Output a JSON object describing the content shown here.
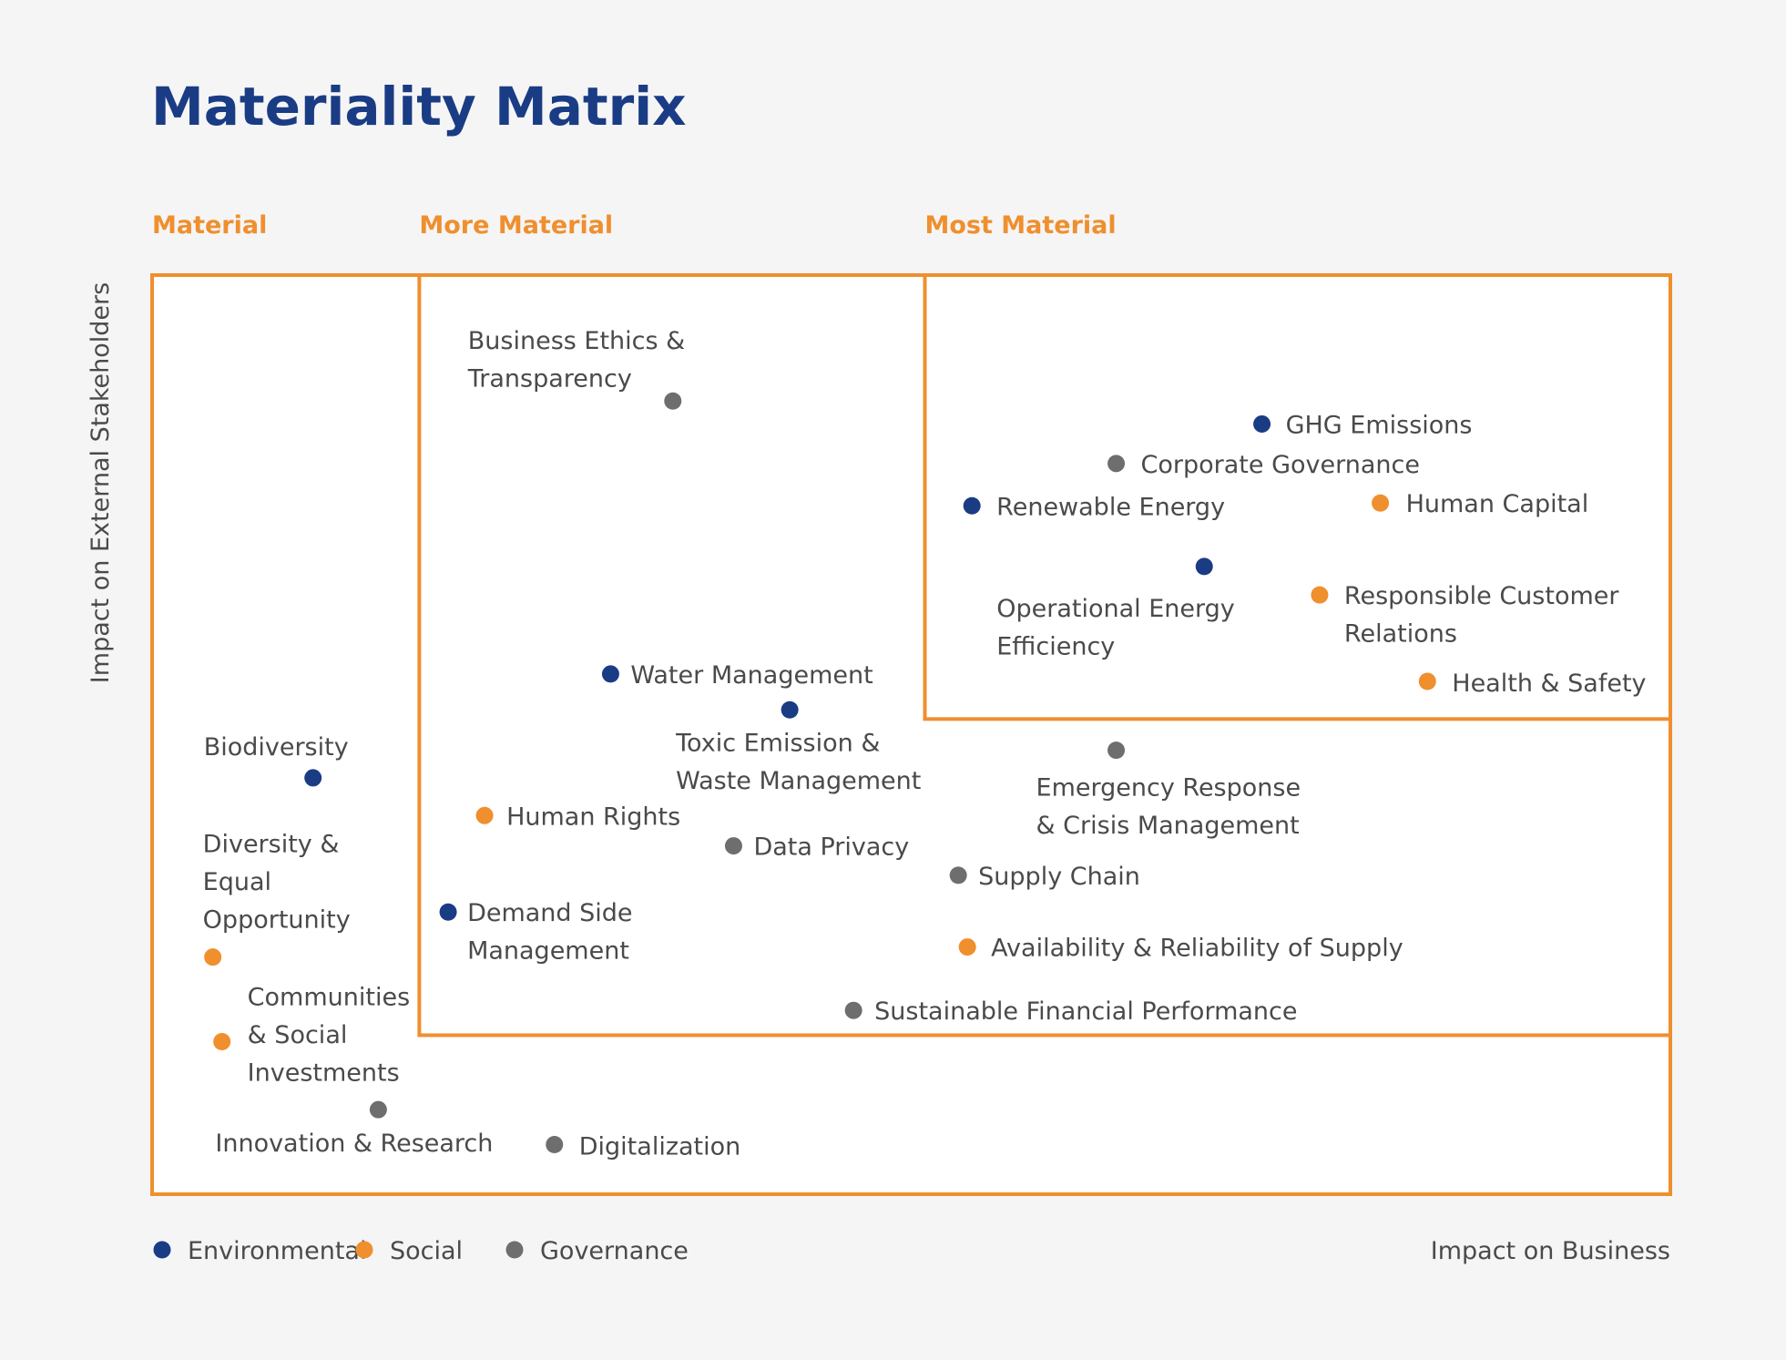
{
  "title": "Materiality Matrix",
  "colors": {
    "background": "#f5f5f5",
    "title": "#1a3c85",
    "frame": "#ef8f2e",
    "zone_label": "#ef8f2e",
    "text": "#4a4a4a",
    "environmental": "#1a3c85",
    "social": "#ef8f2e",
    "governance": "#6e6e6e"
  },
  "chart_data": {
    "type": "scatter",
    "title": "Materiality Matrix",
    "xlabel": "Impact on Business",
    "ylabel": "Impact on External Stakeholders",
    "xlim": [
      0,
      100
    ],
    "ylim": [
      0,
      100
    ],
    "grid": false,
    "legend_position": "bottom-left",
    "zones": [
      {
        "name": "Material",
        "x_from": 0,
        "x_to": 100,
        "y_from": 0,
        "y_to": 100
      },
      {
        "name": "More Material",
        "x_from": 17.6,
        "x_to": 100,
        "y_from": 17.3,
        "y_to": 100
      },
      {
        "name": "Most Material",
        "x_from": 50.9,
        "x_to": 100,
        "y_from": 51.7,
        "y_to": 100
      }
    ],
    "categories": [
      {
        "name": "Environmental",
        "color": "#1a3c85"
      },
      {
        "name": "Social",
        "color": "#ef8f2e"
      },
      {
        "name": "Governance",
        "color": "#6e6e6e"
      }
    ],
    "points": [
      {
        "label": [
          "Business Ethics &",
          "Transparency"
        ],
        "category": "Governance",
        "x": 34.3,
        "y": 86.3
      },
      {
        "label": [
          "GHG Emissions"
        ],
        "category": "Environmental",
        "x": 73.1,
        "y": 83.8
      },
      {
        "label": [
          "Corporate Governance"
        ],
        "category": "Governance",
        "x": 63.5,
        "y": 79.5
      },
      {
        "label": [
          "Renewable Energy"
        ],
        "category": "Environmental",
        "x": 54.0,
        "y": 74.9
      },
      {
        "label": [
          "Human Capital"
        ],
        "category": "Social",
        "x": 80.9,
        "y": 75.2
      },
      {
        "label": [
          "Operational Energy",
          "Efficiency"
        ],
        "category": "Environmental",
        "x": 69.3,
        "y": 68.3
      },
      {
        "label": [
          "Responsible Customer",
          "Relations"
        ],
        "category": "Social",
        "x": 76.9,
        "y": 65.2
      },
      {
        "label": [
          "Health & Safety"
        ],
        "category": "Social",
        "x": 84.0,
        "y": 55.8
      },
      {
        "label": [
          "Water Management"
        ],
        "category": "Environmental",
        "x": 30.2,
        "y": 56.6
      },
      {
        "label": [
          "Toxic Emission &",
          "Waste Management"
        ],
        "category": "Environmental",
        "x": 42.0,
        "y": 52.7
      },
      {
        "label": [
          "Emergency Response",
          "& Crisis Management"
        ],
        "category": "Governance",
        "x": 63.5,
        "y": 48.3
      },
      {
        "label": [
          "Biodiversity"
        ],
        "category": "Environmental",
        "x": 10.6,
        "y": 45.3
      },
      {
        "label": [
          "Human Rights"
        ],
        "category": "Social",
        "x": 21.9,
        "y": 41.2
      },
      {
        "label": [
          "Data Privacy"
        ],
        "category": "Governance",
        "x": 38.3,
        "y": 37.9
      },
      {
        "label": [
          "Supply Chain"
        ],
        "category": "Governance",
        "x": 53.1,
        "y": 34.7
      },
      {
        "label": [
          "Demand Side",
          "Management"
        ],
        "category": "Environmental",
        "x": 19.5,
        "y": 30.7
      },
      {
        "label": [
          "Availability & Reliability of Supply"
        ],
        "category": "Social",
        "x": 53.7,
        "y": 26.9
      },
      {
        "label": [
          "Diversity &",
          "Equal",
          "Opportunity"
        ],
        "category": "Social",
        "x": 4.0,
        "y": 25.8
      },
      {
        "label": [
          "Sustainable Financial Performance"
        ],
        "category": "Governance",
        "x": 46.2,
        "y": 20.0
      },
      {
        "label": [
          "Communities",
          "& Social",
          "Investments"
        ],
        "category": "Social",
        "x": 4.6,
        "y": 16.6
      },
      {
        "label": [
          "Innovation & Research"
        ],
        "category": "Governance",
        "x": 14.9,
        "y": 9.2
      },
      {
        "label": [
          "Digitalization"
        ],
        "category": "Governance",
        "x": 26.5,
        "y": 5.4
      }
    ]
  }
}
